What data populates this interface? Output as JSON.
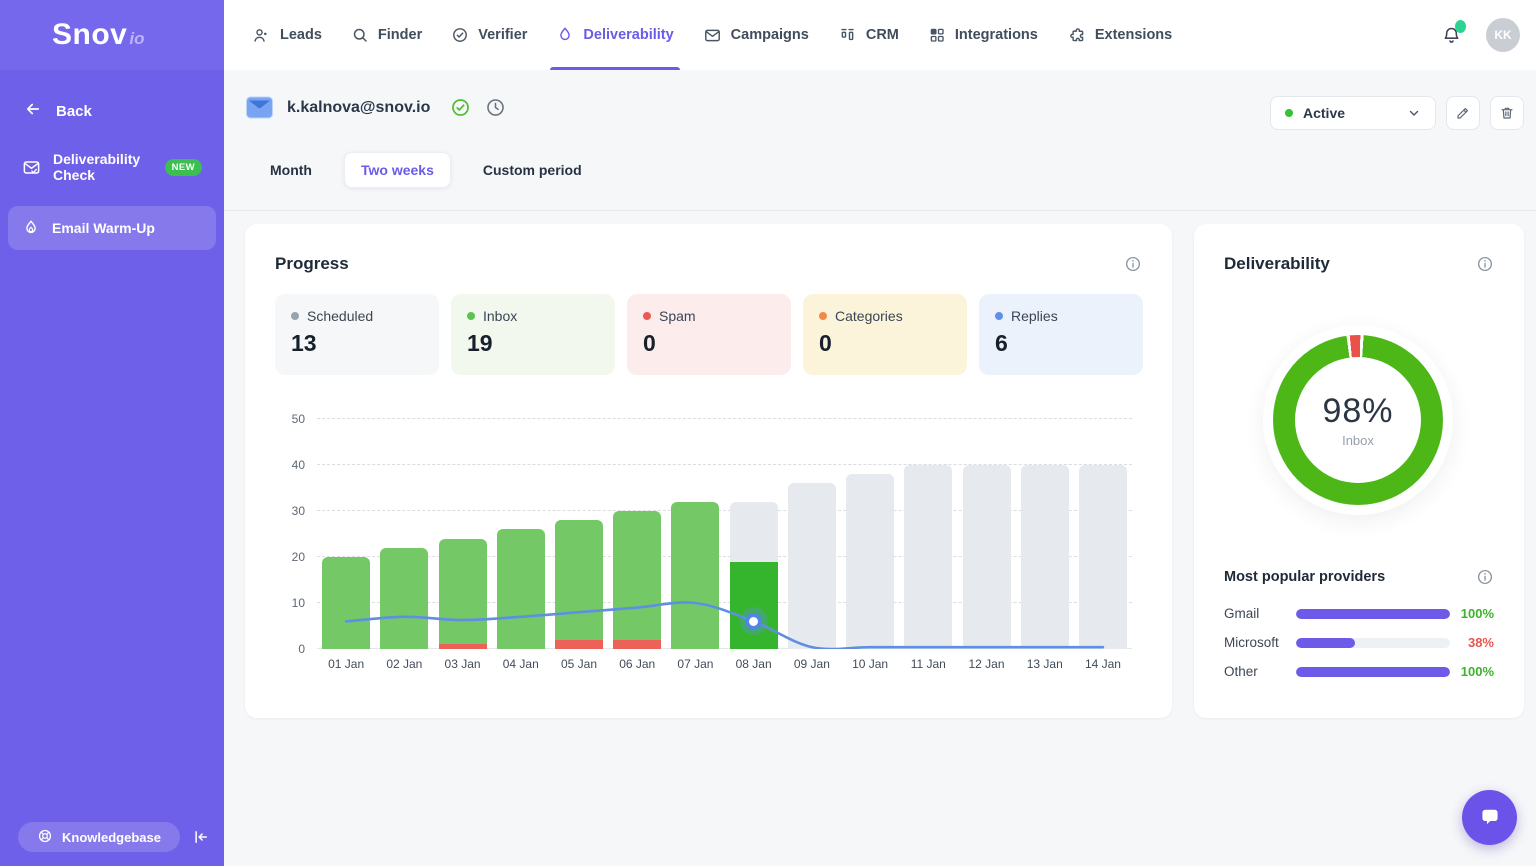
{
  "brand": {
    "name": "Snov",
    "suffix": "io"
  },
  "topnav": {
    "items": [
      {
        "id": "leads",
        "label": "Leads"
      },
      {
        "id": "finder",
        "label": "Finder"
      },
      {
        "id": "verifier",
        "label": "Verifier"
      },
      {
        "id": "deliverability",
        "label": "Deliverability"
      },
      {
        "id": "campaigns",
        "label": "Campaigns"
      },
      {
        "id": "crm",
        "label": "CRM"
      },
      {
        "id": "integrations",
        "label": "Integrations"
      },
      {
        "id": "extensions",
        "label": "Extensions"
      }
    ],
    "active_id": "deliverability"
  },
  "account": {
    "initials": "KK",
    "has_notification": true,
    "notification_color": "#2bd492"
  },
  "sidebar": {
    "back_label": "Back",
    "items": [
      {
        "id": "deliverability-check",
        "label": "Deliverability Check",
        "badge": "NEW"
      },
      {
        "id": "email-warm-up",
        "label": "Email Warm-Up",
        "active": true
      }
    ],
    "knowledgebase_label": "Knowledgebase",
    "bg_color": "#6f60e9"
  },
  "header": {
    "email": "k.kalnova@snov.io",
    "status_label": "Active",
    "status_color": "#35c235"
  },
  "period_tabs": {
    "items": [
      {
        "label": "Month",
        "active": false
      },
      {
        "label": "Two weeks",
        "active": true
      },
      {
        "label": "Custom period",
        "active": false
      }
    ]
  },
  "progress": {
    "title": "Progress",
    "stats": [
      {
        "id": "scheduled",
        "label": "Scheduled",
        "value": "13",
        "dot": "#9aa3ab",
        "bg": "#f6f7f8"
      },
      {
        "id": "inbox",
        "label": "Inbox",
        "value": "19",
        "dot": "#5cc251",
        "bg": "#f2f8ee"
      },
      {
        "id": "spam",
        "label": "Spam",
        "value": "0",
        "dot": "#ea5a51",
        "bg": "#fcecec"
      },
      {
        "id": "categories",
        "label": "Categories",
        "value": "0",
        "dot": "#ef8b44",
        "bg": "#fbf3da"
      },
      {
        "id": "replies",
        "label": "Replies",
        "value": "6",
        "dot": "#5f8fe8",
        "bg": "#ecf2fc"
      }
    ]
  },
  "chart_data": {
    "type": "bar+line",
    "categories": [
      "01 Jan",
      "02 Jan",
      "03 Jan",
      "04 Jan",
      "05 Jan",
      "06 Jan",
      "07 Jan",
      "08 Jan",
      "09 Jan",
      "10 Jan",
      "11 Jan",
      "12 Jan",
      "13 Jan",
      "14 Jan"
    ],
    "bars": [
      {
        "category": "01 Jan",
        "total": 20,
        "spam": 0,
        "state": "past"
      },
      {
        "category": "02 Jan",
        "total": 22,
        "spam": 0,
        "state": "past"
      },
      {
        "category": "03 Jan",
        "total": 24,
        "spam": 1,
        "state": "past"
      },
      {
        "category": "04 Jan",
        "total": 26,
        "spam": 0,
        "state": "past"
      },
      {
        "category": "05 Jan",
        "total": 28,
        "spam": 2,
        "state": "past"
      },
      {
        "category": "06 Jan",
        "total": 30,
        "spam": 2,
        "state": "past"
      },
      {
        "category": "07 Jan",
        "total": 32,
        "spam": 0,
        "state": "past"
      },
      {
        "category": "08 Jan",
        "total": 32,
        "spam": 0,
        "state": "current",
        "inbox": 19
      },
      {
        "category": "09 Jan",
        "total": 36,
        "spam": 0,
        "state": "scheduled"
      },
      {
        "category": "10 Jan",
        "total": 38,
        "spam": 0,
        "state": "scheduled"
      },
      {
        "category": "11 Jan",
        "total": 40,
        "spam": 0,
        "state": "scheduled"
      },
      {
        "category": "12 Jan",
        "total": 40,
        "spam": 0,
        "state": "scheduled"
      },
      {
        "category": "13 Jan",
        "total": 40,
        "spam": 0,
        "state": "scheduled"
      },
      {
        "category": "14 Jan",
        "total": 40,
        "spam": 0,
        "state": "scheduled"
      }
    ],
    "line": {
      "name": "Replies",
      "values": [
        6,
        7,
        6.3,
        7,
        8,
        9,
        10,
        6,
        0.4,
        0.4,
        0.4,
        0.4,
        0.4,
        0.4
      ],
      "highlight_index": 7,
      "color": "#5f8fe2"
    },
    "ylim": [
      0,
      50
    ],
    "yticks": [
      0,
      10,
      20,
      30,
      40,
      50
    ],
    "grid": "dashed-horizontal",
    "colors": {
      "past": "#74c966",
      "current": "#35b52d",
      "scheduled": "#e6e9ed",
      "spam": "#ec6258"
    }
  },
  "deliverability": {
    "title": "Deliverability",
    "percent": "98%",
    "percent_value": 98,
    "center_label": "Inbox",
    "ring_good_color": "#4cb717",
    "ring_bad_color": "#e8524a",
    "providers_title": "Most popular providers",
    "providers": [
      {
        "name": "Gmail",
        "pct": 100,
        "value": "100%",
        "value_color": "#3cb32a"
      },
      {
        "name": "Microsoft",
        "pct": 38,
        "value": "38%",
        "value_color": "#e8554d"
      },
      {
        "name": "Other",
        "pct": 100,
        "value": "100%",
        "value_color": "#3cb32a"
      }
    ],
    "bar_color": "#6d5ae8",
    "track_color": "#eef1f4"
  }
}
